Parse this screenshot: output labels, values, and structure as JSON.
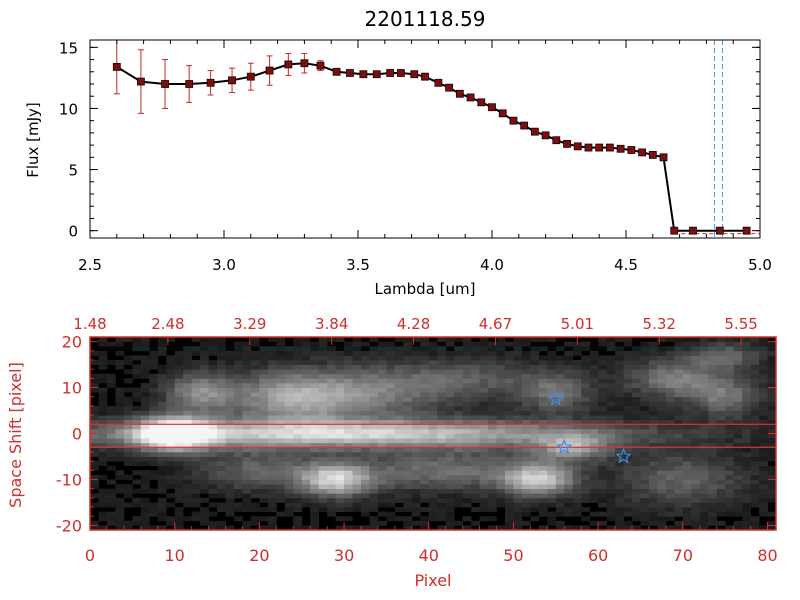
{
  "chart_data": [
    {
      "type": "line",
      "title": "2201118.59",
      "xlabel": "Lambda [um]",
      "ylabel": "Flux [mJy]",
      "xlim": [
        2.5,
        5.0
      ],
      "ylim": [
        -0.6,
        15.6
      ],
      "x_ticks": [
        "2.5",
        "3.0",
        "3.5",
        "4.0",
        "4.5",
        "5.0"
      ],
      "y_ticks": [
        "0",
        "5",
        "10",
        "15"
      ],
      "series": [
        {
          "x": [
            2.6,
            2.69,
            2.78,
            2.87,
            2.95,
            3.03,
            3.1,
            3.17,
            3.24,
            3.3,
            3.36,
            3.42,
            3.47,
            3.52,
            3.57,
            3.62,
            3.66,
            3.71,
            3.75,
            3.8,
            3.84,
            3.88,
            3.92,
            3.96,
            4.0,
            4.04,
            4.08,
            4.12,
            4.16,
            4.2,
            4.24,
            4.28,
            4.32,
            4.36,
            4.4,
            4.44,
            4.48,
            4.52,
            4.56,
            4.6,
            4.64,
            4.68,
            4.75,
            4.85,
            4.95
          ],
          "y": [
            13.4,
            12.2,
            12.0,
            12.0,
            12.1,
            12.3,
            12.6,
            13.1,
            13.6,
            13.7,
            13.5,
            13.0,
            12.9,
            12.8,
            12.8,
            12.9,
            12.9,
            12.8,
            12.6,
            12.1,
            11.7,
            11.2,
            10.9,
            10.5,
            10.1,
            9.6,
            9.0,
            8.6,
            8.1,
            7.8,
            7.4,
            7.1,
            6.9,
            6.8,
            6.8,
            6.8,
            6.7,
            6.6,
            6.4,
            6.2,
            6.0,
            0.0,
            0.0,
            0.0,
            0.0
          ],
          "yerr": [
            2.2,
            2.6,
            2.0,
            1.5,
            1.0,
            1.0,
            1.1,
            1.2,
            0.9,
            0.8,
            0.4,
            0.2,
            0.2,
            0.2,
            0.2,
            0.2,
            0.2,
            0.2,
            0.2,
            0.2,
            0.2,
            0.2,
            0.2,
            0.2,
            0.2,
            0.2,
            0.2,
            0.2,
            0.2,
            0.2,
            0.2,
            0.2,
            0.2,
            0.2,
            0.2,
            0.2,
            0.2,
            0.2,
            0.2,
            0.2,
            0.2,
            0.2,
            0.2,
            0.2,
            0.2
          ]
        }
      ],
      "vertical_lines": [
        4.83,
        4.86
      ],
      "vertical_line_style": "dashed",
      "colors": {
        "line": "#000000",
        "marker": "#7a0f0f",
        "errorbar": "#c62828",
        "vline": "#3aa0e0",
        "baseline": "#d22d2d"
      },
      "grid": false
    },
    {
      "type": "heatmap",
      "xlabel": "Pixel",
      "ylabel": "Space Shift [pixel]",
      "xlim": [
        0,
        81
      ],
      "ylim": [
        -21,
        21
      ],
      "x_ticks": [
        "0",
        "10",
        "20",
        "30",
        "40",
        "50",
        "60",
        "70",
        "80"
      ],
      "y_ticks": [
        "-20",
        "-10",
        "0",
        "10",
        "20"
      ],
      "top_axis_ticks": [
        "1.48",
        "2.48",
        "3.29",
        "3.84",
        "4.28",
        "4.67",
        "5.01",
        "5.32",
        "5.55"
      ],
      "extraction_band": [
        -3,
        2
      ],
      "star_markers": [
        {
          "x": 55,
          "y": 7.5
        },
        {
          "x": 56,
          "y": -3
        },
        {
          "x": 63,
          "y": -5
        }
      ],
      "blobs": [
        {
          "x": 10,
          "y": 0,
          "intensity": 1.0,
          "sx": 3,
          "sy": 2.5
        },
        {
          "x": 30,
          "y": 0,
          "intensity": 0.75,
          "sx": 22,
          "sy": 2.2
        },
        {
          "x": 13,
          "y": 9,
          "intensity": 0.45,
          "sx": 3,
          "sy": 3
        },
        {
          "x": 24,
          "y": 8,
          "intensity": 0.55,
          "sx": 5,
          "sy": 4
        },
        {
          "x": 34,
          "y": 9,
          "intensity": 0.35,
          "sx": 6,
          "sy": 4
        },
        {
          "x": 29,
          "y": -10,
          "intensity": 0.7,
          "sx": 3,
          "sy": 2.5
        },
        {
          "x": 20,
          "y": -8,
          "intensity": 0.3,
          "sx": 5,
          "sy": 3
        },
        {
          "x": 42,
          "y": -8,
          "intensity": 0.35,
          "sx": 8,
          "sy": 3
        },
        {
          "x": 53,
          "y": -10,
          "intensity": 0.65,
          "sx": 3,
          "sy": 2.5
        },
        {
          "x": 57,
          "y": -3,
          "intensity": 0.5,
          "sx": 3,
          "sy": 2
        },
        {
          "x": 55,
          "y": 9,
          "intensity": 0.35,
          "sx": 3,
          "sy": 3
        },
        {
          "x": 69,
          "y": 12,
          "intensity": 0.4,
          "sx": 4,
          "sy": 3
        },
        {
          "x": 75,
          "y": 8,
          "intensity": 0.35,
          "sx": 3,
          "sy": 3
        },
        {
          "x": 75,
          "y": 17,
          "intensity": 0.3,
          "sx": 3,
          "sy": 2
        },
        {
          "x": 70,
          "y": -10,
          "intensity": 0.3,
          "sx": 5,
          "sy": 4
        },
        {
          "x": 45,
          "y": 12,
          "intensity": 0.25,
          "sx": 6,
          "sy": 3
        }
      ],
      "colors": {
        "axis": "#d22d2d",
        "band": "#e03030",
        "star": "#3a8ee8"
      }
    }
  ]
}
